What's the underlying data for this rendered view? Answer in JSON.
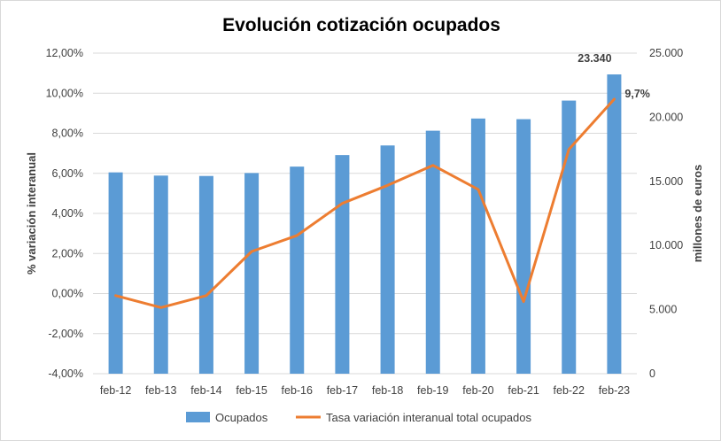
{
  "chart_data": {
    "type": "bar",
    "title": "Evolución cotización ocupados",
    "categories": [
      "feb-12",
      "feb-13",
      "feb-14",
      "feb-15",
      "feb-16",
      "feb-17",
      "feb-18",
      "feb-19",
      "feb-20",
      "feb-21",
      "feb-22",
      "feb-23"
    ],
    "series": [
      {
        "name": "Ocupados",
        "type": "bar",
        "axis": "right",
        "color": "#5b9bd5",
        "values": [
          15700,
          15450,
          15420,
          15650,
          16150,
          17050,
          17800,
          18950,
          19900,
          19850,
          21300,
          23340
        ]
      },
      {
        "name": "Tasa variación interanual total ocupados",
        "type": "line",
        "axis": "left",
        "color": "#ed7d31",
        "values": [
          -0.1,
          -0.7,
          -0.1,
          2.1,
          2.9,
          4.5,
          5.4,
          6.4,
          5.2,
          -0.4,
          7.2,
          9.7
        ]
      }
    ],
    "y_left": {
      "label": "% variación interanual",
      "range": [
        -4,
        12
      ],
      "ticks": [
        "-4,00%",
        "-2,00%",
        "0,00%",
        "2,00%",
        "4,00%",
        "6,00%",
        "8,00%",
        "10,00%",
        "12,00%"
      ]
    },
    "y_right": {
      "label": "millones de euros",
      "range": [
        0,
        25000
      ],
      "ticks": [
        "0",
        "5.000",
        "10.000",
        "15.000",
        "20.000",
        "25.000"
      ]
    },
    "data_labels": {
      "bar_last": "23.340",
      "line_last": "9,7%"
    },
    "grid": true,
    "legend_position": "bottom"
  }
}
